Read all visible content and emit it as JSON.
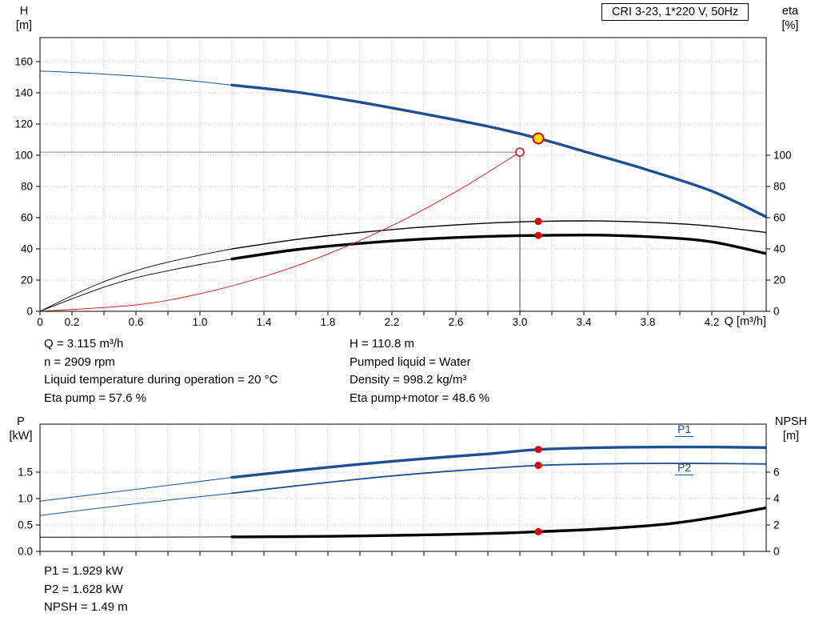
{
  "title_box": {
    "label": "CRI 3-23, 1*220 V, 50Hz"
  },
  "axes": {
    "top": {
      "left_title_1": "H",
      "left_title_2": "[m]",
      "right_title_1": "eta",
      "right_title_2": "[%]",
      "x_title": "Q [m³/h]"
    },
    "bottom": {
      "left_title_1": "P",
      "left_title_2": "[kW]",
      "right_title_1": "NPSH",
      "right_title_2": "[m]"
    }
  },
  "curve_labels": {
    "p1": "P1",
    "p2": "P2"
  },
  "annotations": {
    "q": "Q = 3.115 m³/h",
    "n": "n = 2909 rpm",
    "liquid_temp": "Liquid temperature during operation = 20 °C",
    "eta_pump": "Eta pump = 57.6 %",
    "h": "H = 110.8 m",
    "pumped_liquid": "Pumped liquid = Water",
    "density": "Density = 998.2 kg/m³",
    "eta_pump_motor": "Eta pump+motor = 48.6 %",
    "p1": "P1 = 1.929 kW",
    "p2": "P2 = 1.628 kW",
    "npsh": "NPSH = 1.49 m"
  },
  "colors": {
    "curve_blue": "#1d4f91",
    "curve_black": "#000000",
    "curve_red": "#dd2222",
    "marker_red": "#e00000",
    "duty_yellow": "#ffdd00",
    "grid": "#b8b8b8"
  },
  "chart_data": [
    {
      "name": "qh-eta-chart",
      "type": "line",
      "title": "CRI 3-23, 1*220 V, 50Hz",
      "xlabel": "Q [m³/h]",
      "ylabel": "H [m]",
      "y2label": "eta [%]",
      "xlim": [
        0,
        4.54
      ],
      "ylim": [
        0,
        175
      ],
      "y2lim": [
        0,
        100
      ],
      "x_tick_step": 0.2,
      "x_tick_labels": [
        [
          0,
          "0"
        ],
        [
          0.2,
          "0.2"
        ],
        [
          0.6,
          "0.6"
        ],
        [
          1.0,
          "1.0"
        ],
        [
          1.4,
          "1.4"
        ],
        [
          1.8,
          "1.8"
        ],
        [
          2.2,
          "2.2"
        ],
        [
          2.6,
          "2.6"
        ],
        [
          3.0,
          "3.0"
        ],
        [
          3.4,
          "3.4"
        ],
        [
          3.8,
          "3.8"
        ],
        [
          4.2,
          "4.2"
        ]
      ],
      "y_ticks": [
        [
          0,
          "0"
        ],
        [
          20,
          "20"
        ],
        [
          40,
          "40"
        ],
        [
          60,
          "60"
        ],
        [
          80,
          "80"
        ],
        [
          100,
          "100"
        ],
        [
          120,
          "120"
        ],
        [
          140,
          "140"
        ],
        [
          160,
          "160"
        ]
      ],
      "y2_ticks": [
        [
          0,
          "0"
        ],
        [
          20,
          "20"
        ],
        [
          40,
          "40"
        ],
        [
          60,
          "60"
        ],
        [
          80,
          "80"
        ],
        [
          100,
          "100"
        ]
      ],
      "grid_y": [
        20,
        40,
        60,
        80,
        100,
        120,
        140,
        160
      ],
      "guides": {
        "vline": {
          "x": 3.0,
          "y_top": 102
        },
        "hline": {
          "y": 102,
          "x_to": 3.0
        }
      },
      "series": [
        {
          "name": "head-curve-extension",
          "color": "#1d4f91",
          "width": 1,
          "axis": "left",
          "points": [
            [
              0,
              154
            ],
            [
              0.4,
              152
            ],
            [
              0.8,
              149.2
            ],
            [
              1.2,
              145
            ]
          ]
        },
        {
          "name": "head-curve",
          "color": "#1d4f91",
          "width": 3.4,
          "axis": "left",
          "points": [
            [
              1.2,
              145
            ],
            [
              1.6,
              140.5
            ],
            [
              2.0,
              134
            ],
            [
              2.4,
              126.5
            ],
            [
              2.8,
              118.5
            ],
            [
              3.115,
              110.8
            ],
            [
              3.4,
              102.5
            ],
            [
              3.8,
              90.5
            ],
            [
              4.2,
              77
            ],
            [
              4.54,
              60.5
            ]
          ]
        },
        {
          "name": "eta-pump-extension",
          "color": "#000000",
          "width": 0.9,
          "axis": "right",
          "points": [
            [
              0,
              0
            ],
            [
              0.2,
              10
            ],
            [
              0.4,
              19
            ],
            [
              0.6,
              26
            ],
            [
              0.8,
              31.5
            ],
            [
              1.0,
              36
            ],
            [
              1.2,
              40
            ]
          ]
        },
        {
          "name": "eta-pump-curve",
          "color": "#000000",
          "width": 1.4,
          "axis": "right",
          "points": [
            [
              1.2,
              40
            ],
            [
              1.6,
              46
            ],
            [
              2.0,
              50.5
            ],
            [
              2.4,
              54
            ],
            [
              2.8,
              56.5
            ],
            [
              3.115,
              57.6
            ],
            [
              3.5,
              57.9
            ],
            [
              3.9,
              56.6
            ],
            [
              4.2,
              54.5
            ],
            [
              4.54,
              50.5
            ]
          ]
        },
        {
          "name": "eta-pump-motor-extension",
          "color": "#000000",
          "width": 0.9,
          "axis": "right",
          "points": [
            [
              0,
              0
            ],
            [
              0.2,
              8
            ],
            [
              0.4,
              15.5
            ],
            [
              0.6,
              21.5
            ],
            [
              0.8,
              26
            ],
            [
              1.0,
              30
            ],
            [
              1.2,
              33.5
            ]
          ]
        },
        {
          "name": "eta-pump-motor-curve",
          "color": "#000000",
          "width": 3.4,
          "axis": "right",
          "points": [
            [
              1.2,
              33.5
            ],
            [
              1.6,
              39.5
            ],
            [
              2.0,
              43.5
            ],
            [
              2.4,
              46.3
            ],
            [
              2.8,
              48
            ],
            [
              3.115,
              48.6
            ],
            [
              3.5,
              48.8
            ],
            [
              3.9,
              47.3
            ],
            [
              4.2,
              44.5
            ],
            [
              4.54,
              37
            ]
          ]
        },
        {
          "name": "system-curve",
          "color": "#dd2222",
          "width": 1,
          "axis": "left",
          "points": [
            [
              0,
              0
            ],
            [
              0.6,
              4.1
            ],
            [
              1.0,
              11.3
            ],
            [
              1.4,
              22.2
            ],
            [
              1.8,
              36.7
            ],
            [
              2.2,
              54.9
            ],
            [
              2.6,
              76.6
            ],
            [
              3.0,
              102
            ]
          ]
        }
      ],
      "markers": [
        {
          "name": "requested-duty-point",
          "type": "open",
          "axis": "left",
          "x": 3.0,
          "y": 102
        },
        {
          "name": "duty-point",
          "type": "duty",
          "axis": "left",
          "x": 3.115,
          "y": 110.8
        },
        {
          "name": "eta-pump-duty-dot",
          "type": "dot",
          "axis": "right",
          "x": 3.115,
          "y": 57.6
        },
        {
          "name": "eta-pump-motor-duty-dot",
          "type": "dot",
          "axis": "right",
          "x": 3.115,
          "y": 48.6
        }
      ]
    },
    {
      "name": "power-npsh-chart",
      "type": "line",
      "title": "",
      "xlabel": "Q [m³/h]",
      "ylabel": "P [kW]",
      "y2label": "NPSH [m]",
      "xlim": [
        0,
        4.54
      ],
      "ylim": [
        0,
        2.41
      ],
      "y2lim": [
        0,
        9.6
      ],
      "x_tick_step": 0.2,
      "x_tick_labels": [],
      "y_ticks": [
        [
          0,
          "0.0"
        ],
        [
          0.5,
          "0.5"
        ],
        [
          1,
          "1.0"
        ],
        [
          1.5,
          "1.5"
        ]
      ],
      "y2_ticks": [
        [
          0,
          "0"
        ],
        [
          2,
          "2"
        ],
        [
          4,
          "4"
        ],
        [
          6,
          "6"
        ]
      ],
      "grid_y": [
        0.5,
        1.0,
        1.5
      ],
      "guides": null,
      "series": [
        {
          "name": "p1-curve-extension",
          "color": "#1d4f91",
          "width": 1,
          "axis": "left",
          "points": [
            [
              0,
              0.95
            ],
            [
              0.4,
              1.1
            ],
            [
              0.8,
              1.25
            ],
            [
              1.2,
              1.4
            ]
          ]
        },
        {
          "name": "p1-curve",
          "color": "#1d4f91",
          "width": 3.4,
          "axis": "left",
          "points": [
            [
              1.2,
              1.4
            ],
            [
              1.6,
              1.53
            ],
            [
              2.0,
              1.65
            ],
            [
              2.4,
              1.755
            ],
            [
              2.8,
              1.845
            ],
            [
              3.115,
              1.929
            ],
            [
              3.5,
              1.963
            ],
            [
              3.9,
              1.975
            ],
            [
              4.2,
              1.975
            ],
            [
              4.54,
              1.965
            ]
          ]
        },
        {
          "name": "p2-curve-extension",
          "color": "#1d4f91",
          "width": 1,
          "axis": "left",
          "points": [
            [
              0,
              0.68
            ],
            [
              0.4,
              0.83
            ],
            [
              0.8,
              0.97
            ],
            [
              1.2,
              1.1
            ]
          ]
        },
        {
          "name": "p2-curve",
          "color": "#1d4f91",
          "width": 1.8,
          "axis": "left",
          "points": [
            [
              1.2,
              1.1
            ],
            [
              1.6,
              1.24
            ],
            [
              2.0,
              1.37
            ],
            [
              2.4,
              1.48
            ],
            [
              2.8,
              1.57
            ],
            [
              3.115,
              1.628
            ],
            [
              3.5,
              1.656
            ],
            [
              3.9,
              1.666
            ],
            [
              4.2,
              1.664
            ],
            [
              4.54,
              1.655
            ]
          ]
        },
        {
          "name": "npsh-curve-extension",
          "color": "#000000",
          "width": 1,
          "axis": "right",
          "points": [
            [
              0,
              1.08
            ],
            [
              0.6,
              1.08
            ],
            [
              1.2,
              1.1
            ]
          ]
        },
        {
          "name": "npsh-curve",
          "color": "#000000",
          "width": 3.4,
          "axis": "right",
          "points": [
            [
              1.2,
              1.1
            ],
            [
              1.6,
              1.12
            ],
            [
              2.0,
              1.17
            ],
            [
              2.4,
              1.25
            ],
            [
              2.8,
              1.35
            ],
            [
              3.115,
              1.49
            ],
            [
              3.5,
              1.7
            ],
            [
              3.9,
              2.05
            ],
            [
              4.2,
              2.55
            ],
            [
              4.54,
              3.3
            ]
          ]
        }
      ],
      "markers": [
        {
          "name": "p1-duty-dot",
          "type": "dot",
          "axis": "left",
          "x": 3.115,
          "y": 1.929
        },
        {
          "name": "p2-duty-dot",
          "type": "dot",
          "axis": "left",
          "x": 3.115,
          "y": 1.628
        },
        {
          "name": "npsh-duty-dot",
          "type": "dot",
          "axis": "right",
          "x": 3.115,
          "y": 1.49
        }
      ]
    }
  ]
}
